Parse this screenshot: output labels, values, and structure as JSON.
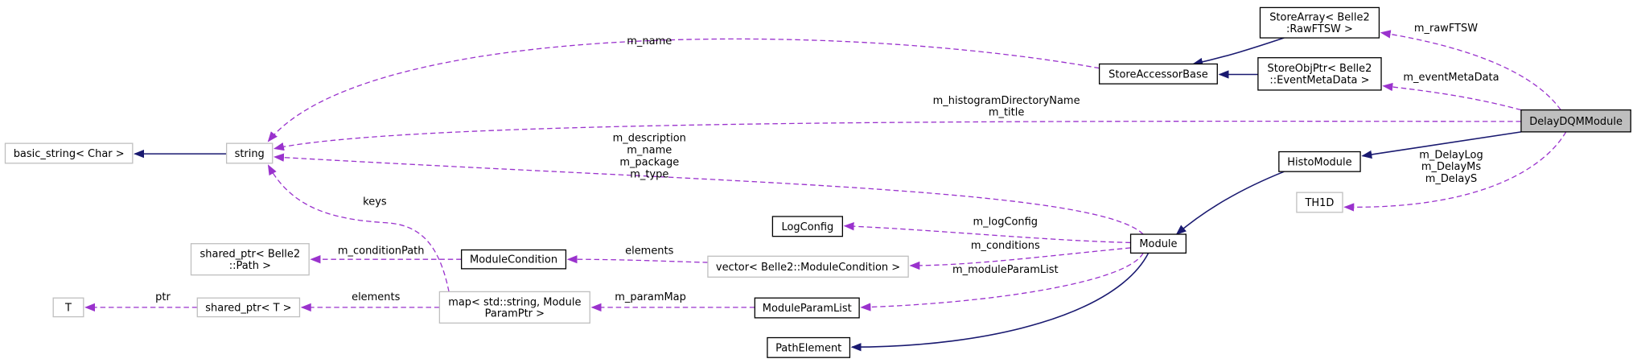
{
  "nodes": [
    {
      "label": [
        "DelayDQMModule"
      ]
    },
    {
      "label": [
        "StoreArray< Belle2",
        ":RawFTSW >"
      ]
    },
    {
      "label": [
        "StoreObjPtr< Belle2",
        "::EventMetaData >"
      ]
    },
    {
      "label": [
        "StoreAccessorBase"
      ]
    },
    {
      "label": [
        "HistoModule"
      ]
    },
    {
      "label": [
        "TH1D"
      ]
    },
    {
      "label": [
        "Module"
      ]
    },
    {
      "label": [
        "string"
      ]
    },
    {
      "label": [
        "basic_string< Char >"
      ]
    },
    {
      "label": [
        "LogConfig"
      ]
    },
    {
      "label": [
        "ModuleCondition"
      ]
    },
    {
      "label": [
        "vector< Belle2::ModuleCondition >"
      ]
    },
    {
      "label": [
        "shared_ptr< Belle2",
        "::Path >"
      ]
    },
    {
      "label": [
        "T"
      ]
    },
    {
      "label": [
        "shared_ptr< T >"
      ]
    },
    {
      "label": [
        "map< std::string, Module",
        "ParamPtr >"
      ]
    },
    {
      "label": [
        "ModuleParamList"
      ]
    },
    {
      "label": [
        "PathElement"
      ]
    }
  ],
  "edges": [
    {
      "labels": [
        "m_rawFTSW"
      ]
    },
    {
      "labels": [
        "m_eventMetaData"
      ]
    },
    {
      "labels": [
        "m_name"
      ]
    },
    {
      "labels": [
        "m_histogramDirectoryName",
        "m_title"
      ]
    },
    {
      "labels": [
        "m_DelayLog",
        "m_DelayMs",
        "m_DelayS"
      ]
    },
    {
      "labels": [
        "m_description",
        "m_name",
        "m_package",
        "m_type"
      ]
    },
    {
      "labels": [
        "keys"
      ]
    },
    {
      "labels": [
        "m_logConfig"
      ]
    },
    {
      "labels": [
        "m_conditions"
      ]
    },
    {
      "labels": [
        "elements"
      ]
    },
    {
      "labels": [
        "m_conditionPath"
      ]
    },
    {
      "labels": [
        "m_moduleParamList"
      ]
    },
    {
      "labels": [
        "m_paramMap"
      ]
    },
    {
      "labels": [
        "elements"
      ]
    },
    {
      "labels": [
        "ptr"
      ]
    }
  ]
}
